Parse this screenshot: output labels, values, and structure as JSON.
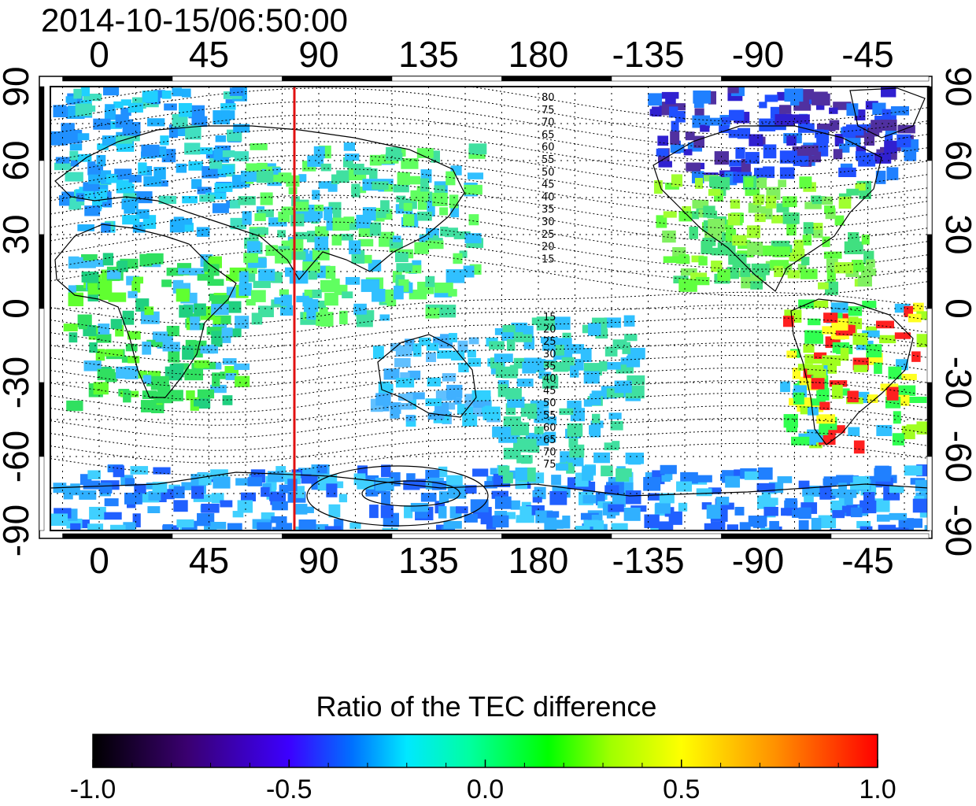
{
  "map": {
    "title": "2014-10-15/06:50:00",
    "lon_ticks": [
      "0",
      "45",
      "90",
      "135",
      "180",
      "-135",
      "-90",
      "-45"
    ],
    "lat_ticks_left": [
      "90",
      "60",
      "30",
      "0",
      "-30",
      "-60",
      "-90"
    ],
    "lat_ticks_right": [
      "90",
      "60",
      "30",
      "0",
      "-30",
      "-60",
      "-90"
    ],
    "lon_range": [
      -20,
      340
    ],
    "lat_range": [
      -90,
      90
    ],
    "meridian_marker": {
      "lon": 80,
      "color": "#e01010"
    },
    "mlat_labels_north": [
      "80",
      "75",
      "70",
      "65",
      "60",
      "55",
      "50",
      "45",
      "40",
      "35",
      "30",
      "25",
      "20",
      "15"
    ],
    "mlat_labels_south": [
      "15",
      "20",
      "25",
      "30",
      "35",
      "40",
      "45",
      "50",
      "55",
      "60",
      "65",
      "70",
      "75"
    ],
    "grid": "dotted"
  },
  "colorbar": {
    "title": "Ratio of the TEC difference",
    "ticks": [
      "-1.0",
      "-0.5",
      "0.0",
      "0.5",
      "1.0"
    ],
    "range": [
      -1.0,
      1.0
    ],
    "colors": [
      "#000000",
      "#3a0070",
      "#3c00ff",
      "#0070ff",
      "#00e8ff",
      "#00ffa0",
      "#00ff00",
      "#a0ff00",
      "#ffff00",
      "#ff9000",
      "#ff0000"
    ]
  }
}
